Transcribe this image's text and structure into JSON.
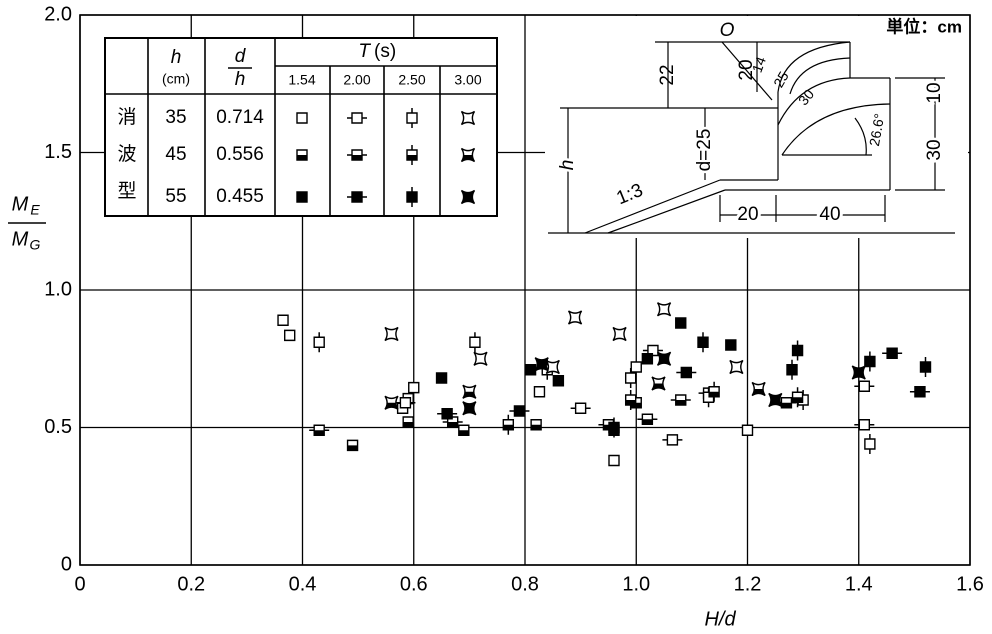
{
  "chart_data": {
    "type": "scatter",
    "xlabel": "H/d",
    "ylabel": {
      "top": {
        "base": "M",
        "sub": "E"
      },
      "bottom": {
        "base": "M",
        "sub": "G"
      }
    },
    "xlim": [
      0,
      1.6
    ],
    "ylim": [
      0,
      2.0
    ],
    "xticks": [
      0,
      0.2,
      0.4,
      0.6,
      0.8,
      {
        "value": 1,
        "label": "1.0"
      },
      1.2,
      1.4,
      1.6
    ],
    "yticks": [
      0,
      0.5,
      {
        "value": 1,
        "label": "1.0"
      },
      1.5,
      {
        "value": 2,
        "label": "2.0"
      }
    ],
    "grid": true,
    "series": [
      {
        "color": "#000000",
        "fill": "open",
        "tail": "none",
        "x": [
          0.365,
          0.377,
          0.58,
          0.59,
          0.6,
          0.826,
          0.96,
          1.0,
          1.2
        ],
        "values": [
          0.89,
          0.835,
          0.57,
          0.605,
          0.645,
          0.63,
          0.38,
          0.72,
          0.49
        ]
      },
      {
        "color": "#000000",
        "fill": "open",
        "tail": "h",
        "x": [
          0.585,
          0.9,
          1.03,
          1.065,
          1.13,
          1.41,
          1.41
        ],
        "values": [
          0.59,
          0.57,
          0.78,
          0.455,
          0.625,
          0.65,
          0.51
        ]
      },
      {
        "color": "#000000",
        "fill": "open",
        "tail": "v",
        "x": [
          0.43,
          0.71,
          0.84,
          0.99,
          1.13,
          1.3,
          1.42
        ],
        "values": [
          0.81,
          0.81,
          0.71,
          0.68,
          0.61,
          0.6,
          0.44
        ]
      },
      {
        "color": "#000000",
        "fill": "open",
        "tail": "star",
        "x": [
          0.56,
          0.72,
          0.85,
          0.89,
          0.97,
          1.05,
          1.18
        ],
        "values": [
          0.84,
          0.75,
          0.72,
          0.9,
          0.84,
          0.93,
          0.72
        ]
      },
      {
        "color": "#000000",
        "fill": "half",
        "tail": "none",
        "x": [
          0.49,
          0.59,
          0.69,
          0.82,
          0.96,
          1.0
        ],
        "values": [
          0.435,
          0.52,
          0.49,
          0.51,
          0.49,
          0.59
        ]
      },
      {
        "color": "#000000",
        "fill": "half",
        "tail": "h",
        "x": [
          0.43,
          0.67,
          0.95,
          1.02,
          1.08,
          1.27
        ],
        "values": [
          0.49,
          0.52,
          0.51,
          0.53,
          0.6,
          0.59
        ]
      },
      {
        "color": "#000000",
        "fill": "half",
        "tail": "v",
        "x": [
          0.77,
          0.99,
          1.14,
          1.29
        ],
        "values": [
          0.51,
          0.6,
          0.63,
          0.61
        ]
      },
      {
        "color": "#000000",
        "fill": "half",
        "tail": "star",
        "x": [
          0.56,
          0.7,
          1.04,
          1.22
        ],
        "values": [
          0.59,
          0.63,
          0.66,
          0.64
        ]
      },
      {
        "color": "#000000",
        "fill": "filled",
        "tail": "none",
        "x": [
          0.65,
          0.81,
          0.86,
          1.02,
          1.08,
          1.17
        ],
        "values": [
          0.68,
          0.71,
          0.67,
          0.75,
          0.88,
          0.8
        ]
      },
      {
        "color": "#000000",
        "fill": "filled",
        "tail": "h",
        "x": [
          0.66,
          0.79,
          1.09,
          1.46,
          1.51
        ],
        "values": [
          0.55,
          0.56,
          0.7,
          0.77,
          0.63
        ]
      },
      {
        "color": "#000000",
        "fill": "filled",
        "tail": "v",
        "x": [
          0.96,
          1.12,
          1.28,
          1.29,
          1.42,
          1.52
        ],
        "values": [
          0.5,
          0.81,
          0.71,
          0.78,
          0.74,
          0.72
        ]
      },
      {
        "color": "#000000",
        "fill": "filled",
        "tail": "star",
        "x": [
          0.7,
          0.83,
          1.05,
          1.25,
          1.4
        ],
        "values": [
          0.57,
          0.73,
          0.75,
          0.6,
          0.7
        ]
      }
    ],
    "legend_table": {
      "h": "h",
      "h_unit": "(cm)",
      "d_over_h": {
        "num": "d",
        "den": "h"
      },
      "T": "T",
      "T_unit": "(s)",
      "periods": [
        "1.54",
        "2.00",
        "2.50",
        "3.00"
      ],
      "row_label": [
        "消",
        "波",
        "型"
      ],
      "rows": [
        [
          "35",
          "0.714"
        ],
        [
          "45",
          "0.556"
        ],
        [
          "55",
          "0.455"
        ]
      ]
    },
    "diagram": {
      "unit": "単位：cm",
      "O": "O",
      "d22": "22",
      "d20": "20",
      "r14": "14",
      "r25": "25",
      "r30": "30",
      "d10": "10",
      "d30": "30",
      "angle": "26.6°",
      "d": "d=25",
      "h": "h",
      "slope": "1:3",
      "b20": "20",
      "b40": "40"
    }
  }
}
